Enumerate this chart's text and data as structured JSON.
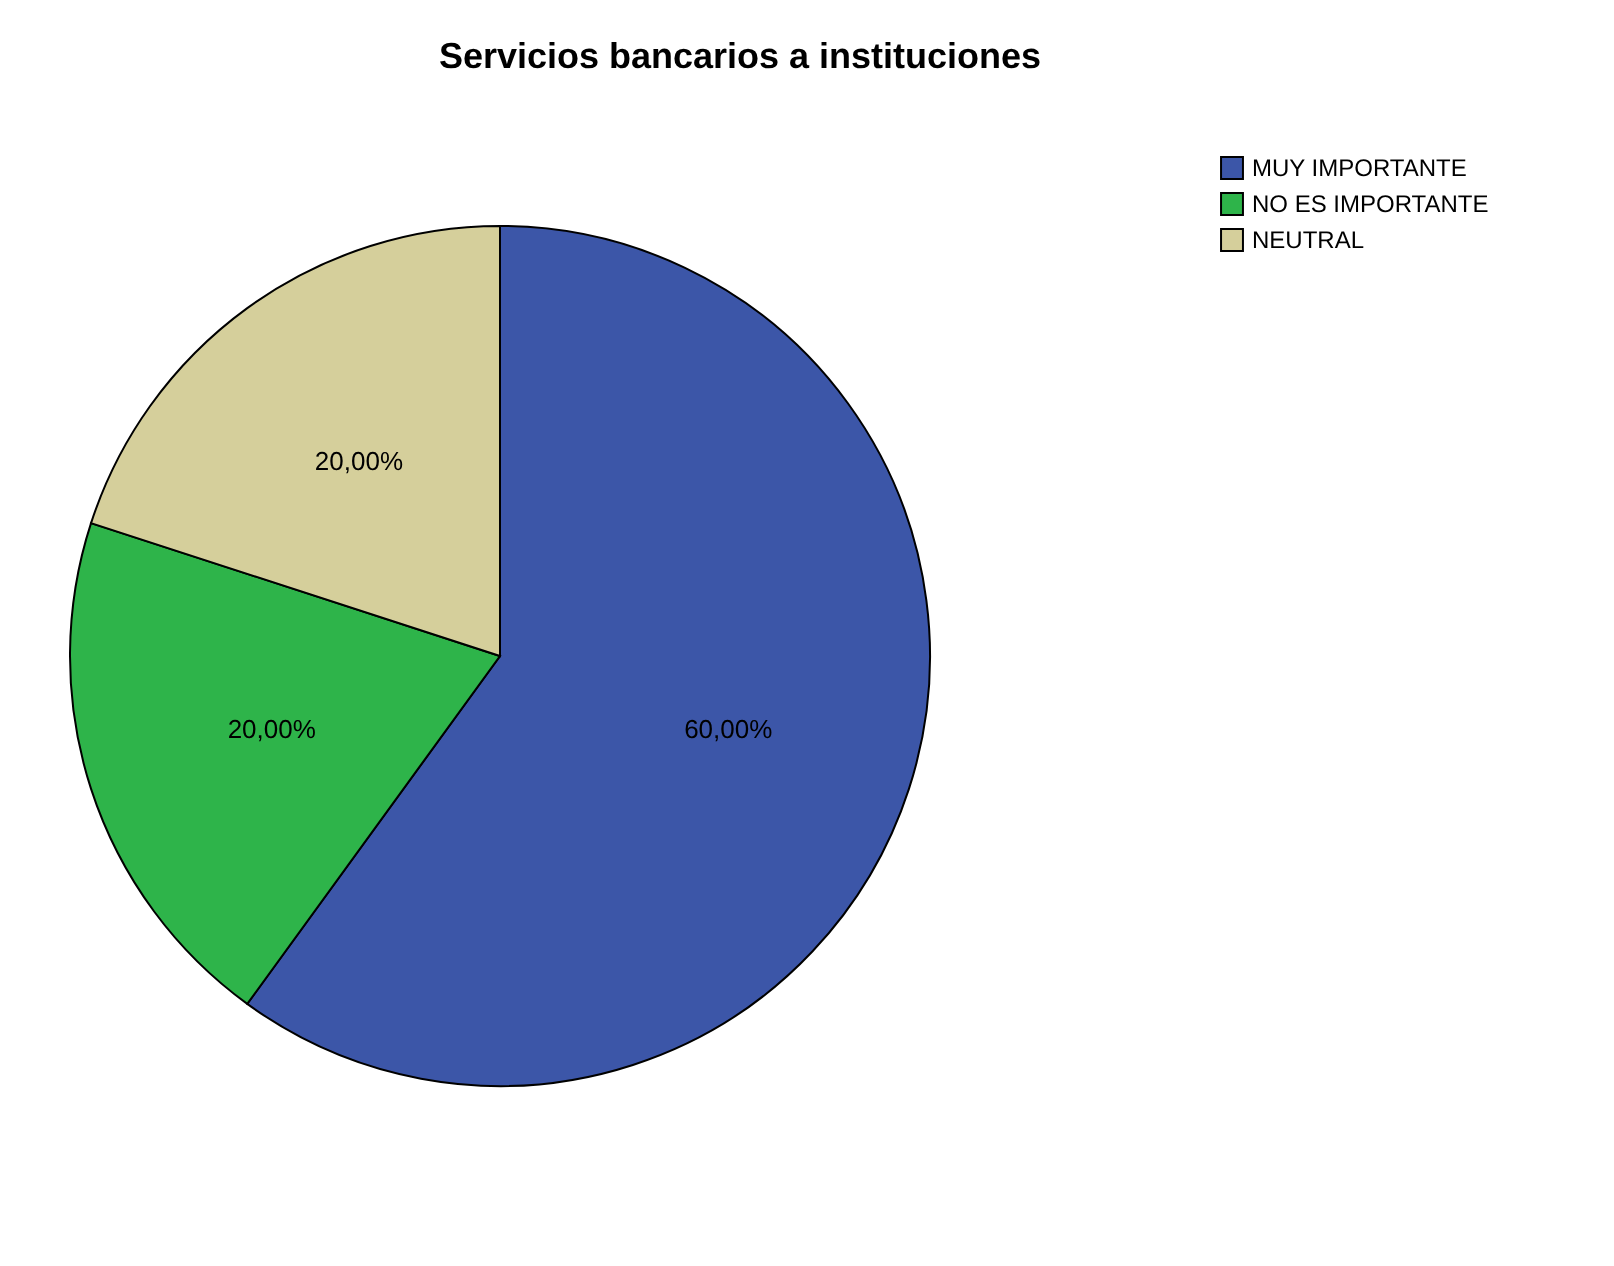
{
  "chart_data": {
    "type": "pie",
    "title": "Servicios bancarios a instituciones",
    "categories": [
      "MUY IMPORTANTE",
      "NO ES IMPORTANTE",
      "NEUTRAL"
    ],
    "values": [
      60,
      20,
      20
    ],
    "colors": [
      "#3c56a8",
      "#2eb44a",
      "#d5cf9b"
    ],
    "value_labels": [
      "60,00%",
      "20,00%",
      "20,00%"
    ],
    "legend": "top right"
  }
}
